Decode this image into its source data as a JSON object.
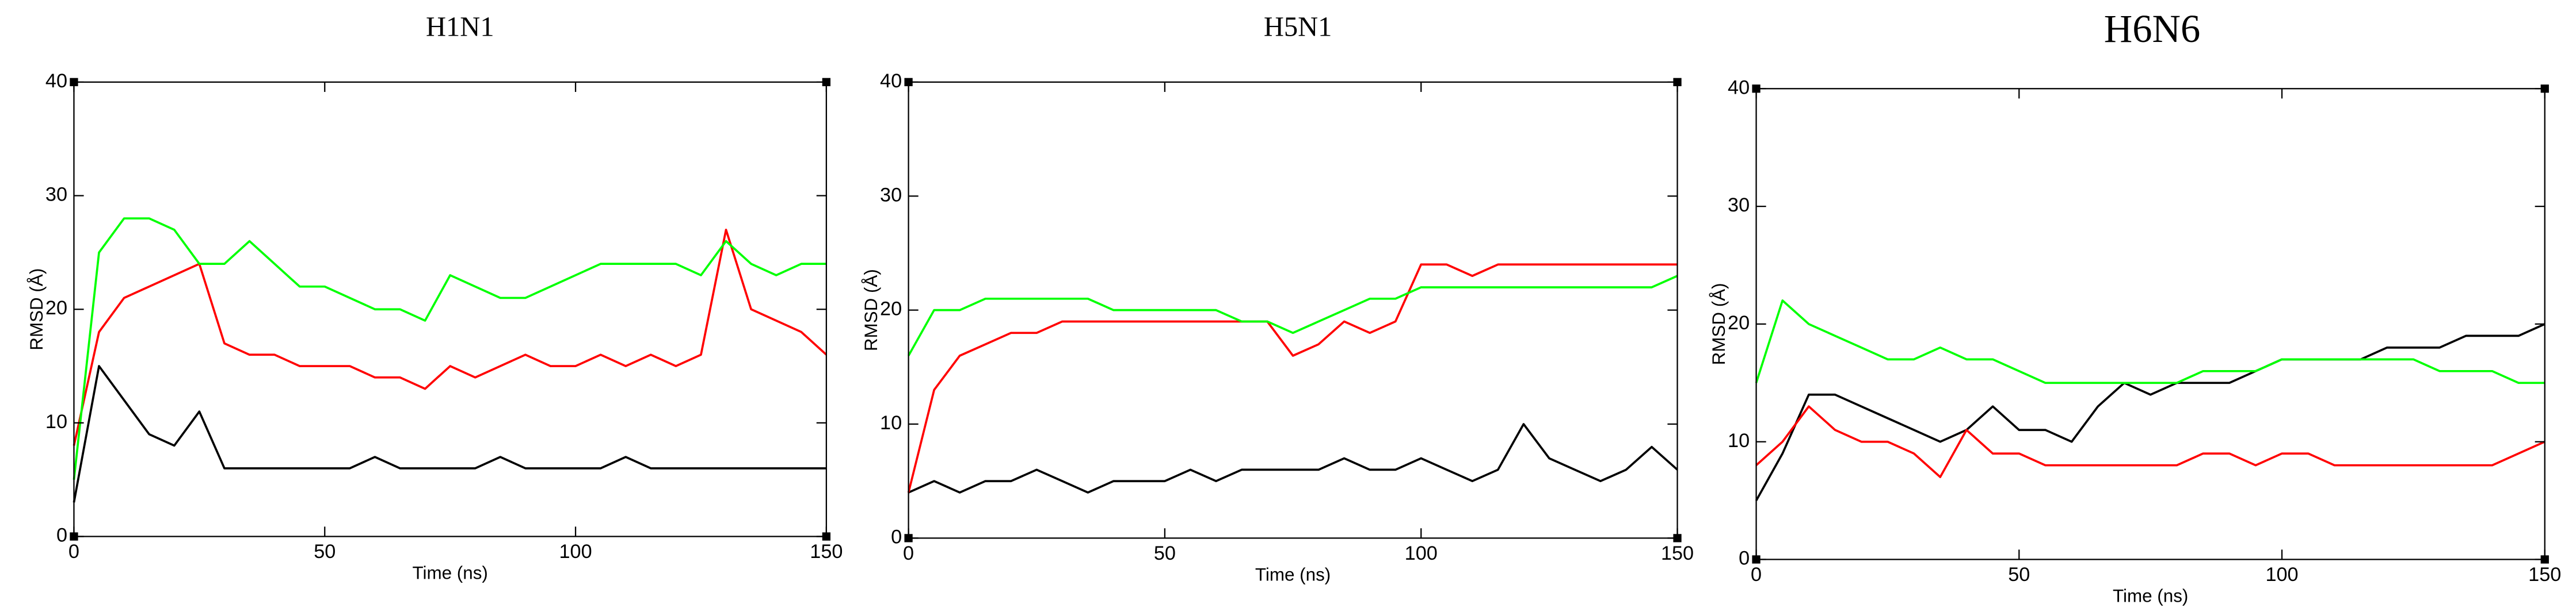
{
  "chart_data": [
    {
      "type": "line",
      "title": "H1N1",
      "x_label": "Time (ns)",
      "y_label": "RMSD (Å)",
      "x": [
        0,
        5,
        10,
        15,
        20,
        25,
        30,
        35,
        40,
        45,
        50,
        55,
        60,
        65,
        70,
        75,
        80,
        85,
        90,
        95,
        100,
        105,
        110,
        115,
        120,
        125,
        130,
        135,
        140,
        145,
        150
      ],
      "xlim": [
        0,
        150
      ],
      "xticks": [
        0,
        50,
        100,
        150
      ],
      "ylim": [
        0,
        40
      ],
      "yticks": [
        0,
        10,
        20,
        30,
        40
      ],
      "series": [
        {
          "color": "#000000",
          "values": [
            3,
            15,
            12,
            9,
            8,
            11,
            6,
            6,
            6,
            6,
            6,
            6,
            7,
            6,
            6,
            6,
            6,
            7,
            6,
            6,
            6,
            6,
            7,
            6,
            6,
            6,
            6,
            6,
            6,
            6,
            6
          ]
        },
        {
          "color": "#ff0000",
          "values": [
            8,
            18,
            21,
            22,
            23,
            24,
            17,
            16,
            16,
            15,
            15,
            15,
            14,
            14,
            13,
            15,
            14,
            15,
            16,
            15,
            15,
            16,
            15,
            16,
            15,
            16,
            27,
            20,
            19,
            18,
            16
          ]
        },
        {
          "color": "#00ff00",
          "values": [
            5,
            25,
            28,
            28,
            27,
            24,
            24,
            26,
            24,
            22,
            22,
            21,
            20,
            20,
            19,
            23,
            22,
            21,
            21,
            22,
            23,
            24,
            24,
            24,
            24,
            23,
            26,
            24,
            23,
            24,
            24
          ]
        }
      ]
    },
    {
      "type": "line",
      "title": "H5N1",
      "x_label": "Time (ns)",
      "y_label": "RMSD (Å)",
      "x": [
        0,
        5,
        10,
        15,
        20,
        25,
        30,
        35,
        40,
        45,
        50,
        55,
        60,
        65,
        70,
        75,
        80,
        85,
        90,
        95,
        100,
        105,
        110,
        115,
        120,
        125,
        130,
        135,
        140,
        145,
        150
      ],
      "xlim": [
        0,
        150
      ],
      "xticks": [
        0,
        50,
        100,
        150
      ],
      "ylim": [
        0,
        40
      ],
      "yticks": [
        0,
        10,
        20,
        30,
        40
      ],
      "series": [
        {
          "color": "#000000",
          "values": [
            4,
            5,
            4,
            5,
            5,
            6,
            5,
            4,
            5,
            5,
            5,
            6,
            5,
            6,
            6,
            6,
            6,
            7,
            6,
            6,
            7,
            6,
            5,
            6,
            10,
            7,
            6,
            5,
            6,
            8,
            6
          ]
        },
        {
          "color": "#ff0000",
          "values": [
            4,
            13,
            16,
            17,
            18,
            18,
            19,
            19,
            19,
            19,
            19,
            19,
            19,
            19,
            19,
            16,
            17,
            19,
            18,
            19,
            24,
            24,
            23,
            24,
            24,
            24,
            24,
            24,
            24,
            24,
            24
          ]
        },
        {
          "color": "#00ff00",
          "values": [
            16,
            20,
            20,
            21,
            21,
            21,
            21,
            21,
            20,
            20,
            20,
            20,
            20,
            19,
            19,
            18,
            19,
            20,
            21,
            21,
            22,
            22,
            22,
            22,
            22,
            22,
            22,
            22,
            22,
            22,
            23
          ]
        }
      ]
    },
    {
      "type": "line",
      "title": "H6N6",
      "x_label": "Time (ns)",
      "y_label": "RMSD (Å)",
      "x": [
        0,
        5,
        10,
        15,
        20,
        25,
        30,
        35,
        40,
        45,
        50,
        55,
        60,
        65,
        70,
        75,
        80,
        85,
        90,
        95,
        100,
        105,
        110,
        115,
        120,
        125,
        130,
        135,
        140,
        145,
        150
      ],
      "xlim": [
        0,
        150
      ],
      "xticks": [
        0,
        50,
        100,
        150
      ],
      "ylim": [
        0,
        40
      ],
      "yticks": [
        0,
        10,
        20,
        30,
        40
      ],
      "series": [
        {
          "color": "#000000",
          "values": [
            5,
            9,
            14,
            14,
            13,
            12,
            11,
            10,
            11,
            13,
            11,
            11,
            10,
            13,
            15,
            14,
            15,
            15,
            15,
            16,
            17,
            17,
            17,
            17,
            18,
            18,
            18,
            19,
            19,
            19,
            20
          ]
        },
        {
          "color": "#ff0000",
          "values": [
            8,
            10,
            13,
            11,
            10,
            10,
            9,
            7,
            11,
            9,
            9,
            8,
            8,
            8,
            8,
            8,
            8,
            9,
            9,
            8,
            9,
            9,
            8,
            8,
            8,
            8,
            8,
            8,
            8,
            9,
            10
          ]
        },
        {
          "color": "#00ff00",
          "values": [
            15,
            22,
            20,
            19,
            18,
            17,
            17,
            18,
            17,
            17,
            16,
            15,
            15,
            15,
            15,
            15,
            15,
            16,
            16,
            16,
            17,
            17,
            17,
            17,
            17,
            17,
            16,
            16,
            16,
            15,
            15
          ]
        }
      ]
    }
  ]
}
